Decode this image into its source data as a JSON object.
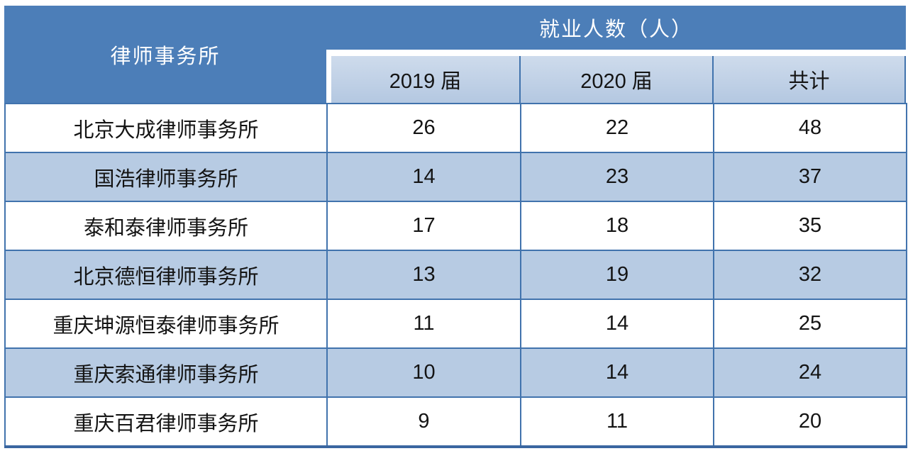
{
  "chart_data": {
    "type": "table",
    "group_header": "就业人数（人）",
    "columns": [
      "律师事务所",
      "2019 届",
      "2020 届",
      "共计"
    ],
    "rows": [
      [
        "北京大成律师事务所",
        26,
        22,
        48
      ],
      [
        "国浩律师事务所",
        14,
        23,
        37
      ],
      [
        "泰和泰律师事务所",
        17,
        18,
        35
      ],
      [
        "北京德恒律师事务所",
        13,
        19,
        32
      ],
      [
        "重庆坤源恒泰律师事务所",
        11,
        14,
        25
      ],
      [
        "重庆索通律师事务所",
        10,
        14,
        24
      ],
      [
        "重庆百君律师事务所",
        9,
        11,
        20
      ]
    ],
    "layout_hints": {
      "header_spans_two_rows": "律师事务所",
      "group_header_spans": [
        "2019 届",
        "2020 届",
        "共计"
      ],
      "row_striping": "white / light-blue alternating"
    }
  },
  "colors": {
    "header_blue": "#4c7eb8",
    "subheader_light_blue": "#c1d1e6",
    "stripe_light_blue": "#b7cbe3",
    "border_blue": "#4173ad",
    "header_text": "#ffffff",
    "body_text": "#141414"
  }
}
